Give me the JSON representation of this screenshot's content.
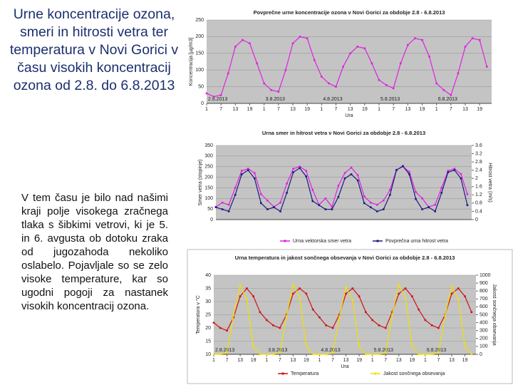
{
  "slide": {
    "title": "Urne koncentracije ozona, smeri in hitrosti vetra ter temperatura v Novi Gorici v času visokih koncentracij ozona od 2.8. do 6.8.2013",
    "body": "V tem času je bilo nad našimi kraji polje visokega zračnega tlaka s šibkimi vetrovi, ki je 5. in 6. avgusta ob dotoku zraka od jugozahoda nekoliko oslabelo. Pojavljale so se zelo visoke temperature, kar so ugodni pogoji za nastanek visokih koncentracij ozona."
  },
  "chart_data": [
    {
      "type": "line",
      "title": "Povprečne urne koncentracije ozona v Novi Gorici za obdobje 2.8 - 6.8.2013",
      "ylabel": "Koncentracija [µg/m3]",
      "xlabel": "Ura",
      "x": [
        0,
        3,
        6,
        9,
        12,
        15,
        18,
        21,
        24,
        27,
        30,
        33,
        36,
        39,
        42,
        45,
        48,
        51,
        54,
        57,
        60,
        63,
        66,
        69,
        72,
        75,
        78,
        81,
        84,
        87,
        90,
        93,
        96,
        99,
        102,
        105,
        108,
        111,
        114,
        117
      ],
      "xlim": [
        0,
        119
      ],
      "xticks": [
        {
          "value": 0,
          "label": "1"
        },
        {
          "value": 6,
          "label": "7"
        },
        {
          "value": 12,
          "label": "13"
        },
        {
          "value": 18,
          "label": "19"
        },
        {
          "value": 24,
          "label": "1"
        },
        {
          "value": 30,
          "label": "7"
        },
        {
          "value": 36,
          "label": "13"
        },
        {
          "value": 42,
          "label": "19"
        },
        {
          "value": 48,
          "label": "1"
        },
        {
          "value": 54,
          "label": "7"
        },
        {
          "value": 60,
          "label": "13"
        },
        {
          "value": 66,
          "label": "19"
        },
        {
          "value": 72,
          "label": "1"
        },
        {
          "value": 78,
          "label": "7"
        },
        {
          "value": 84,
          "label": "13"
        },
        {
          "value": 90,
          "label": "19"
        },
        {
          "value": 96,
          "label": "1"
        },
        {
          "value": 102,
          "label": "7"
        },
        {
          "value": 108,
          "label": "13"
        },
        {
          "value": 114,
          "label": "19"
        }
      ],
      "ylim": [
        0,
        250
      ],
      "yticks": [
        0,
        50,
        100,
        150,
        200,
        250
      ],
      "grid": true,
      "date_labels": [
        {
          "x": 0,
          "label": "2.8.2013"
        },
        {
          "x": 24,
          "label": "3.8.2013"
        },
        {
          "x": 48,
          "label": "4.8.2013"
        },
        {
          "x": 72,
          "label": "5.8.2013"
        },
        {
          "x": 96,
          "label": "6.8.2013"
        }
      ],
      "series": [
        {
          "name": "Ozon",
          "color": "#e020e0",
          "values": [
            30,
            20,
            25,
            90,
            170,
            190,
            180,
            120,
            60,
            40,
            35,
            100,
            180,
            200,
            195,
            130,
            80,
            60,
            50,
            110,
            150,
            170,
            165,
            120,
            70,
            55,
            45,
            120,
            175,
            195,
            190,
            140,
            60,
            40,
            25,
            90,
            170,
            195,
            190,
            110
          ]
        }
      ]
    },
    {
      "type": "line",
      "title": "Urna smer in hitrost vetra v Novi Gorici za obdobje 2.8 - 6.8.2013",
      "ylabel": "Smer vetra (stopinje)",
      "y2label": "Hitrost vetra (m/s)",
      "x": [
        0,
        3,
        6,
        9,
        12,
        15,
        18,
        21,
        24,
        27,
        30,
        33,
        36,
        39,
        42,
        45,
        48,
        51,
        54,
        57,
        60,
        63,
        66,
        69,
        72,
        75,
        78,
        81,
        84,
        87,
        90,
        93,
        96,
        99,
        102,
        105,
        108,
        111,
        114,
        117
      ],
      "xlim": [
        0,
        119
      ],
      "ylim": [
        0,
        350
      ],
      "yticks": [
        0,
        50,
        100,
        150,
        200,
        250,
        300,
        350
      ],
      "y2lim": [
        0,
        3.6
      ],
      "y2ticks": [
        0,
        0.4,
        0.8,
        1.2,
        1.6,
        2,
        2.4,
        2.8,
        3.2,
        3.6
      ],
      "grid": true,
      "legend": "bottom",
      "series": [
        {
          "name": "Urna vektorska smer vetra",
          "color": "#e020e0",
          "values": [
            60,
            80,
            70,
            150,
            230,
            240,
            220,
            120,
            90,
            60,
            80,
            170,
            240,
            250,
            230,
            140,
            70,
            100,
            60,
            160,
            220,
            245,
            210,
            110,
            80,
            70,
            90,
            140,
            235,
            250,
            225,
            130,
            100,
            60,
            70,
            150,
            230,
            240,
            215,
            120
          ]
        },
        {
          "name": "Povprečna urna hitrost vetra",
          "color": "#1a1a80",
          "axis": "y2",
          "values": [
            0.6,
            0.5,
            0.4,
            1.2,
            2.2,
            2.4,
            2.0,
            0.8,
            0.5,
            0.6,
            0.4,
            1.3,
            2.3,
            2.5,
            2.1,
            0.9,
            0.7,
            0.5,
            0.5,
            1.1,
            2.0,
            2.2,
            1.9,
            0.8,
            0.6,
            0.4,
            0.5,
            1.2,
            2.4,
            2.6,
            2.2,
            1.0,
            0.5,
            0.6,
            0.4,
            1.3,
            2.3,
            2.4,
            2.0,
            0.7
          ]
        }
      ]
    },
    {
      "type": "line",
      "title": "Urna temperatura in jakost sončnega obsevanja v Novi Gorici za obdobje 2.8 - 6.8.2013",
      "ylabel": "Temperatura v °C",
      "y2label": "Jakost sončnega obsevanja",
      "xlabel": "Ura",
      "x": [
        0,
        3,
        6,
        9,
        12,
        15,
        18,
        21,
        24,
        27,
        30,
        33,
        36,
        39,
        42,
        45,
        48,
        51,
        54,
        57,
        60,
        63,
        66,
        69,
        72,
        75,
        78,
        81,
        84,
        87,
        90,
        93,
        96,
        99,
        102,
        105,
        108,
        111,
        114,
        117
      ],
      "xlim": [
        0,
        119
      ],
      "xticks": [
        {
          "value": 0,
          "label": "1"
        },
        {
          "value": 6,
          "label": "7"
        },
        {
          "value": 12,
          "label": "13"
        },
        {
          "value": 18,
          "label": "19"
        },
        {
          "value": 24,
          "label": "1"
        },
        {
          "value": 30,
          "label": "7"
        },
        {
          "value": 36,
          "label": "13"
        },
        {
          "value": 42,
          "label": "19"
        },
        {
          "value": 48,
          "label": "1"
        },
        {
          "value": 54,
          "label": "7"
        },
        {
          "value": 60,
          "label": "13"
        },
        {
          "value": 66,
          "label": "19"
        },
        {
          "value": 72,
          "label": "1"
        },
        {
          "value": 78,
          "label": "7"
        },
        {
          "value": 84,
          "label": "13"
        },
        {
          "value": 90,
          "label": "19"
        },
        {
          "value": 96,
          "label": "1"
        },
        {
          "value": 102,
          "label": "7"
        },
        {
          "value": 108,
          "label": "13"
        },
        {
          "value": 114,
          "label": "19"
        }
      ],
      "ylim": [
        10,
        40
      ],
      "yticks": [
        10,
        15,
        20,
        25,
        30,
        35,
        40
      ],
      "y2lim": [
        0,
        1000
      ],
      "y2ticks": [
        0,
        100,
        200,
        300,
        400,
        500,
        600,
        700,
        800,
        900,
        1000
      ],
      "grid": true,
      "legend": "bottom",
      "date_labels": [
        {
          "x": 0,
          "label": "2.8.2013"
        },
        {
          "x": 24,
          "label": "3.8.2013"
        },
        {
          "x": 48,
          "label": "4.8.2013"
        },
        {
          "x": 72,
          "label": "5.8.2013"
        },
        {
          "x": 96,
          "label": "6.8.2013"
        }
      ],
      "series": [
        {
          "name": "Temperatura",
          "color": "#d01010",
          "values": [
            22,
            20,
            19,
            24,
            32,
            35,
            32,
            26,
            23,
            21,
            20,
            25,
            33,
            35,
            33,
            27,
            24,
            21,
            20,
            25,
            33,
            35,
            32,
            26,
            23,
            21,
            20,
            26,
            33,
            35,
            32,
            27,
            23,
            21,
            20,
            25,
            33,
            35,
            32,
            26
          ]
        },
        {
          "name": "Jakost sončnega obsevanja",
          "color": "#f0e000",
          "axis": "y2",
          "values": [
            0,
            0,
            20,
            500,
            870,
            700,
            100,
            0,
            0,
            0,
            20,
            480,
            880,
            720,
            110,
            0,
            0,
            0,
            15,
            470,
            850,
            690,
            100,
            0,
            0,
            0,
            20,
            500,
            880,
            710,
            110,
            0,
            0,
            0,
            20,
            490,
            860,
            700,
            100,
            0
          ]
        }
      ]
    }
  ]
}
